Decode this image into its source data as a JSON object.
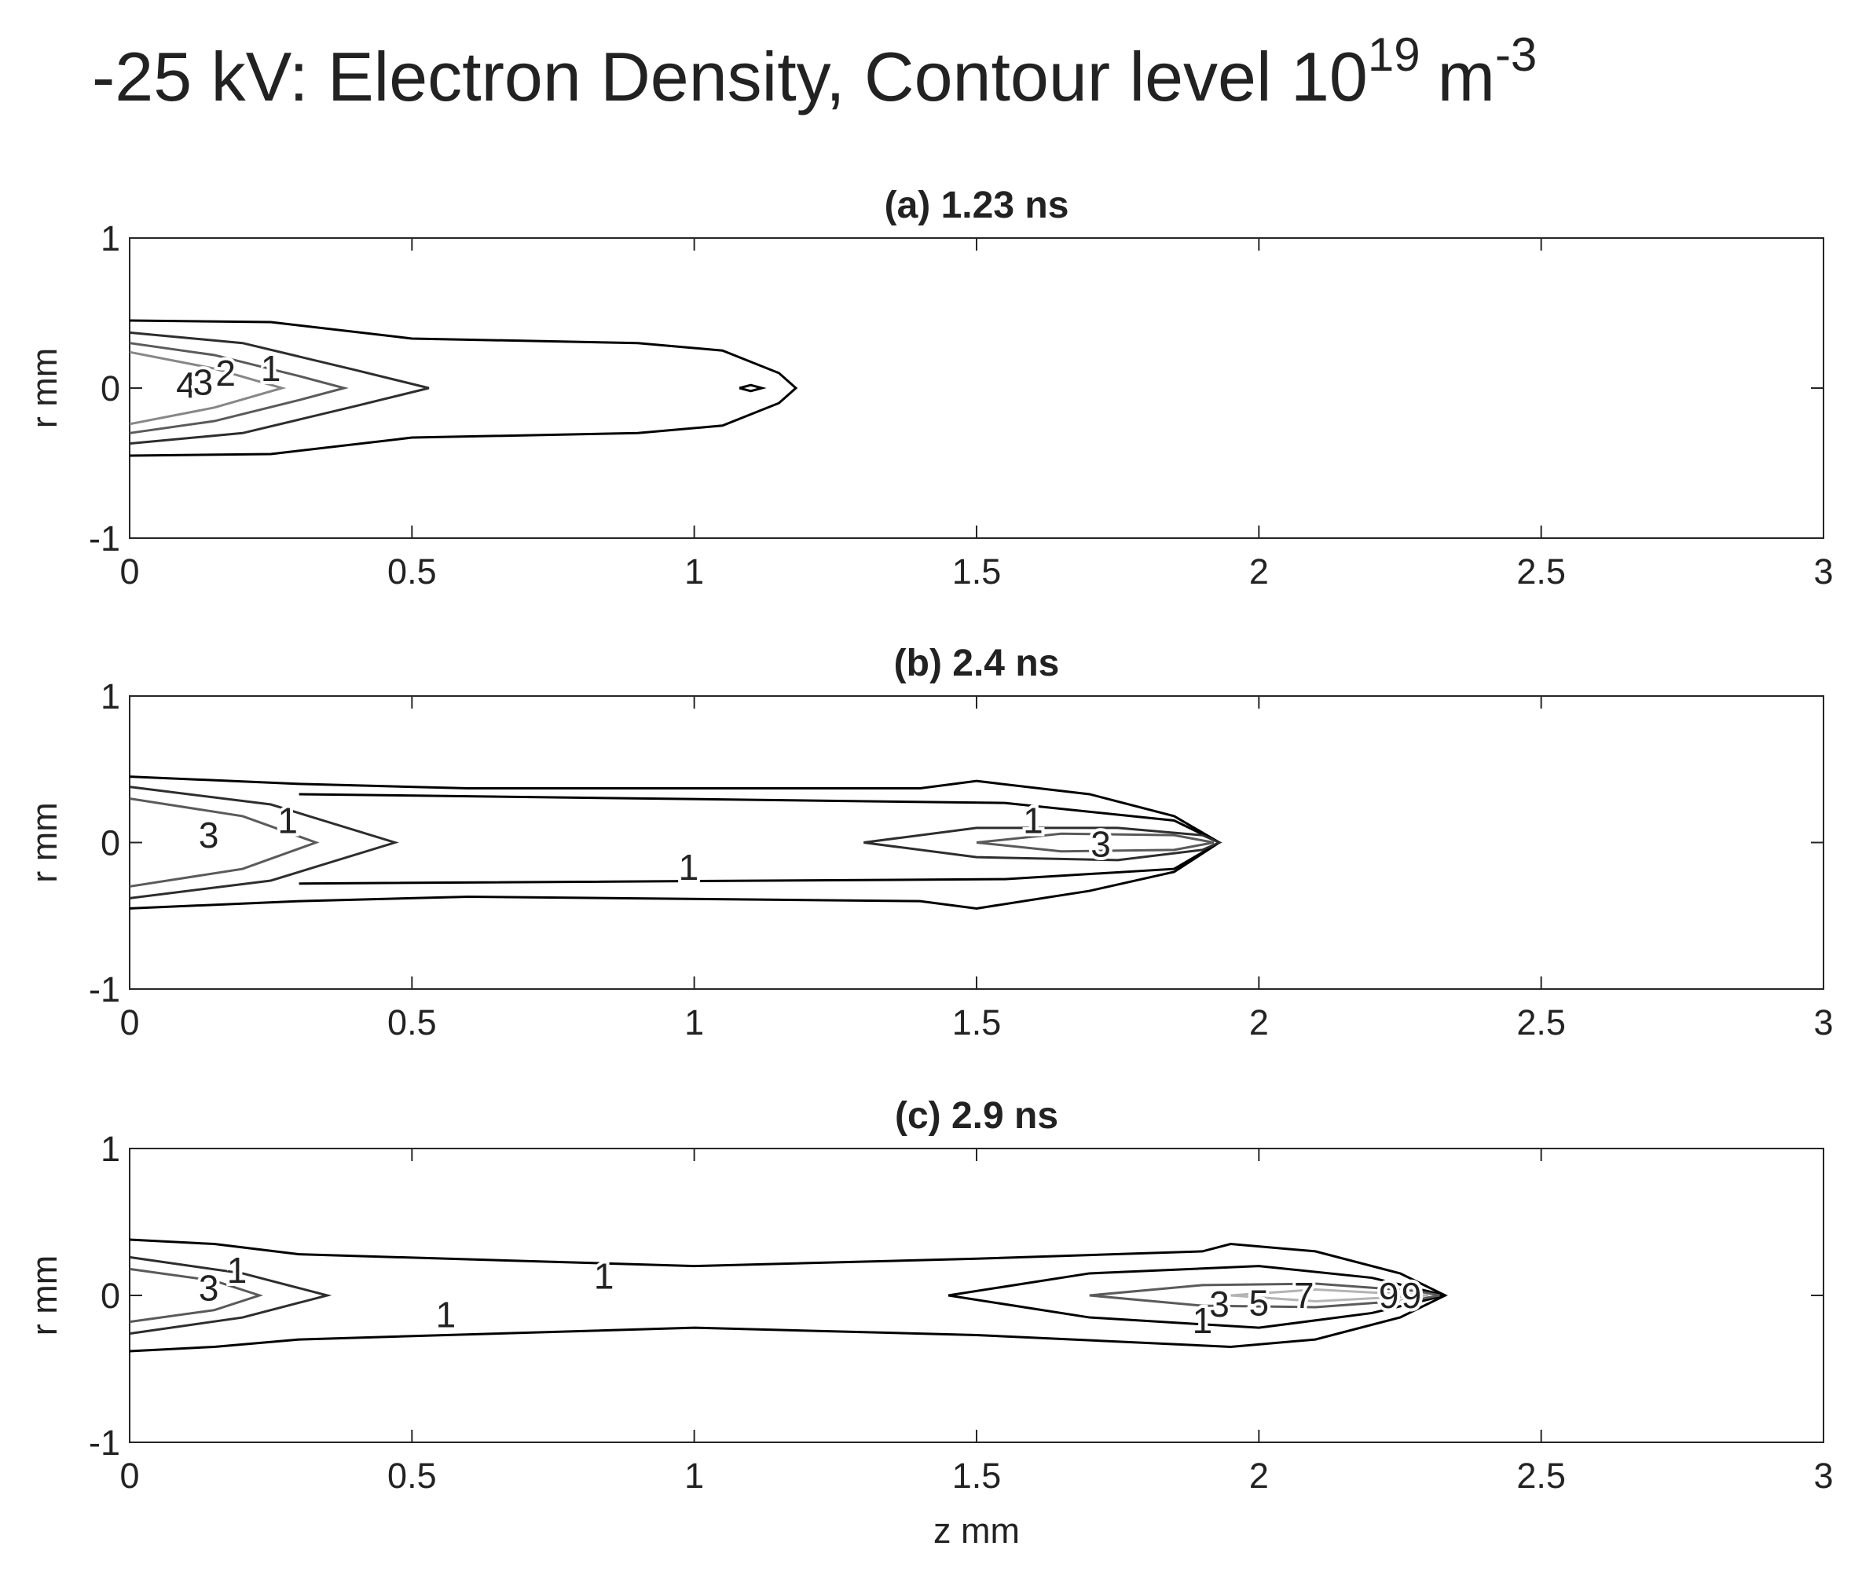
{
  "figure": {
    "title": {
      "text": "-25 kV: Electron Density, Contour level 10",
      "sup1": "19",
      "unit": "m",
      "sup2": "-3"
    }
  },
  "chart_data": [
    {
      "type": "contour",
      "title": "(a) 1.23 ns",
      "y_label": "r mm",
      "xlim": [
        0,
        3
      ],
      "xticks": [
        0,
        0.5,
        1,
        1.5,
        2,
        2.5,
        3
      ],
      "ylim": [
        -1,
        1
      ],
      "yticks": [
        -1,
        0,
        1
      ],
      "contours": [
        {
          "level": 1,
          "z": [
            0,
            0.25,
            0.5,
            0.9,
            1.05,
            1.15,
            1.18,
            1.15,
            1.05,
            0.9,
            0.5,
            0.25,
            0
          ],
          "r": [
            0.45,
            0.44,
            0.33,
            0.3,
            0.25,
            0.1,
            0,
            -0.1,
            -0.25,
            -0.3,
            -0.33,
            -0.44,
            -0.45
          ]
        },
        {
          "level": 1,
          "z": [
            1.08,
            1.1,
            1.12,
            1.1,
            1.08
          ],
          "r": [
            0,
            0.02,
            0,
            -0.02,
            0
          ]
        },
        {
          "level": 2,
          "z": [
            0,
            0.2,
            0.4,
            0.53,
            0.4,
            0.2,
            0
          ],
          "r": [
            0.37,
            0.3,
            0.12,
            0,
            -0.12,
            -0.3,
            -0.37
          ]
        },
        {
          "level": 3,
          "z": [
            0,
            0.15,
            0.3,
            0.38,
            0.3,
            0.15,
            0
          ],
          "r": [
            0.3,
            0.22,
            0.08,
            0,
            -0.08,
            -0.22,
            -0.3
          ]
        },
        {
          "level": 4,
          "z": [
            0,
            0.15,
            0.27,
            0.15,
            0
          ],
          "r": [
            0.24,
            0.13,
            0,
            -0.13,
            -0.24
          ]
        }
      ],
      "contour_labels": [
        {
          "level": 4,
          "z": 0.1,
          "r": 0.02
        },
        {
          "level": 3,
          "z": 0.13,
          "r": 0.04
        },
        {
          "level": 2,
          "z": 0.17,
          "r": 0.1
        },
        {
          "level": 1,
          "z": 0.25,
          "r": 0.13
        }
      ]
    },
    {
      "type": "contour",
      "title": "(b) 2.4 ns",
      "y_label": "r mm",
      "xlim": [
        0,
        3
      ],
      "xticks": [
        0,
        0.5,
        1,
        1.5,
        2,
        2.5,
        3
      ],
      "ylim": [
        -1,
        1
      ],
      "yticks": [
        -1,
        0,
        1
      ],
      "contours": [
        {
          "level": 1,
          "z": [
            0,
            0.3,
            0.6,
            1.4,
            1.5,
            1.7,
            1.85,
            1.93,
            1.85,
            1.7,
            1.5,
            1.4,
            0.6,
            0.3,
            0
          ],
          "r": [
            0.45,
            0.4,
            0.37,
            0.37,
            0.42,
            0.33,
            0.18,
            0,
            -0.2,
            -0.33,
            -0.45,
            -0.4,
            -0.37,
            -0.4,
            -0.45
          ]
        },
        {
          "level": 1,
          "z": [
            0.3,
            1.55,
            1.85,
            1.93,
            1.85,
            1.55,
            0.3
          ],
          "r": [
            0.33,
            0.27,
            0.15,
            0,
            -0.18,
            -0.25,
            -0.28
          ]
        },
        {
          "level": 2,
          "z": [
            0,
            0.25,
            0.47,
            0.25,
            0
          ],
          "r": [
            0.38,
            0.26,
            0,
            -0.26,
            -0.38
          ]
        },
        {
          "level": 3,
          "z": [
            0,
            0.2,
            0.33,
            0.2,
            0
          ],
          "r": [
            0.3,
            0.18,
            0,
            -0.18,
            -0.3
          ]
        },
        {
          "level": 2,
          "z": [
            1.3,
            1.5,
            1.75,
            1.9,
            1.93,
            1.9,
            1.75,
            1.5,
            1.3
          ],
          "r": [
            0,
            0.1,
            0.1,
            0.05,
            0,
            -0.05,
            -0.12,
            -0.1,
            0
          ]
        },
        {
          "level": 3,
          "z": [
            1.5,
            1.65,
            1.85,
            1.92,
            1.85,
            1.65,
            1.5
          ],
          "r": [
            0,
            0.06,
            0.05,
            0,
            -0.05,
            -0.06,
            0
          ]
        }
      ],
      "contour_labels": [
        {
          "level": 3,
          "z": 0.14,
          "r": 0.05
        },
        {
          "level": 1,
          "z": 0.28,
          "r": 0.15
        },
        {
          "level": 1,
          "z": 1.6,
          "r": 0.15
        },
        {
          "level": 1,
          "z": 0.99,
          "r": -0.17
        },
        {
          "level": 3,
          "z": 1.72,
          "r": -0.01
        }
      ]
    },
    {
      "type": "contour",
      "title": "(c) 2.9 ns",
      "y_label": "r mm",
      "x_label": "z mm",
      "xlim": [
        0,
        3
      ],
      "xticks": [
        0,
        0.5,
        1,
        1.5,
        2,
        2.5,
        3
      ],
      "ylim": [
        -1,
        1
      ],
      "yticks": [
        -1,
        0,
        1
      ],
      "contours": [
        {
          "level": 1,
          "z": [
            0,
            0.15,
            0.3,
            1.0,
            1.5,
            1.9,
            1.95,
            2.1,
            2.25,
            2.33,
            2.25,
            2.1,
            1.95,
            1.5,
            1.0,
            0.3,
            0.15,
            0
          ],
          "r": [
            0.38,
            0.35,
            0.28,
            0.2,
            0.25,
            0.3,
            0.35,
            0.3,
            0.15,
            0,
            -0.15,
            -0.3,
            -0.35,
            -0.27,
            -0.22,
            -0.3,
            -0.35,
            -0.38
          ]
        },
        {
          "level": 2,
          "z": [
            0,
            0.2,
            0.35,
            0.2,
            0
          ],
          "r": [
            0.26,
            0.15,
            0,
            -0.15,
            -0.26
          ]
        },
        {
          "level": 3,
          "z": [
            0,
            0.15,
            0.23,
            0.15,
            0
          ],
          "r": [
            0.18,
            0.1,
            0,
            -0.1,
            -0.18
          ]
        },
        {
          "level": 1,
          "z": [
            1.45,
            1.7,
            2.0,
            2.2,
            2.33,
            2.2,
            2.0,
            1.7,
            1.45
          ],
          "r": [
            0,
            0.15,
            0.2,
            0.12,
            0,
            -0.12,
            -0.22,
            -0.15,
            0
          ]
        },
        {
          "level": 3,
          "z": [
            1.7,
            1.9,
            2.1,
            2.28,
            2.32,
            2.28,
            2.1,
            1.9,
            1.7
          ],
          "r": [
            0,
            0.07,
            0.08,
            0.03,
            0,
            -0.03,
            -0.08,
            -0.07,
            0
          ]
        },
        {
          "level": 5,
          "z": [
            1.95,
            2.1,
            2.3,
            2.1,
            1.95
          ],
          "r": [
            0,
            0.04,
            0,
            -0.04,
            0
          ]
        }
      ],
      "contour_labels": [
        {
          "level": 1,
          "z": 0.19,
          "r": 0.17
        },
        {
          "level": 3,
          "z": 0.14,
          "r": 0.05
        },
        {
          "level": 1,
          "z": 0.84,
          "r": 0.13
        },
        {
          "level": 1,
          "z": 0.56,
          "r": -0.13
        },
        {
          "level": 3,
          "z": 1.93,
          "r": -0.06
        },
        {
          "level": 5,
          "z": 2.0,
          "r": -0.05
        },
        {
          "level": 7,
          "z": 2.08,
          "r": 0.0
        },
        {
          "level": 9,
          "z": 2.23,
          "r": 0.0
        },
        {
          "level": 9,
          "z": 2.27,
          "r": 0.0
        },
        {
          "level": 1,
          "z": 1.9,
          "r": -0.17
        }
      ]
    }
  ]
}
